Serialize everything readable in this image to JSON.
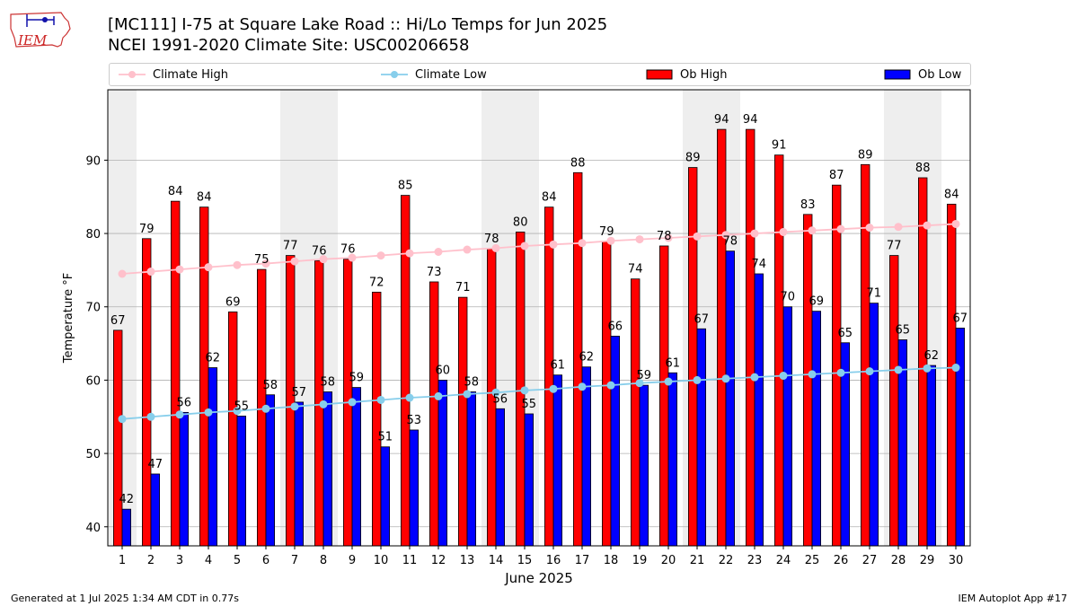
{
  "title_line1": "[MC111] I-75 at Square Lake Road  :: Hi/Lo Temps for Jun 2025",
  "title_line2": "NCEI 1991-2020 Climate Site: USC00206658",
  "logo_text": "IEM",
  "footer_left": "Generated at 1 Jul 2025 1:34 AM CDT in 0.77s",
  "footer_right": "IEM Autoplot App #17",
  "colors": {
    "ob_high": "#ff0000",
    "ob_low": "#0000ff",
    "climate_high": "#ffc0cb",
    "climate_low": "#87ceeb",
    "weekend_shade": "#eeeeee",
    "grid": "#b0b0b0"
  },
  "chart_data": {
    "type": "bar",
    "xlabel": "June 2025",
    "ylabel": "Temperature °F",
    "ylim": [
      37.4,
      99.6
    ],
    "yticks": [
      40,
      50,
      60,
      70,
      80,
      90
    ],
    "grid": "horizontal",
    "legend_position": "top",
    "legend": [
      "Climate High",
      "Climate Low",
      "Ob High",
      "Ob Low"
    ],
    "categories": [
      "1",
      "2",
      "3",
      "4",
      "5",
      "6",
      "7",
      "8",
      "9",
      "10",
      "11",
      "12",
      "13",
      "14",
      "15",
      "16",
      "17",
      "18",
      "19",
      "20",
      "21",
      "22",
      "23",
      "24",
      "25",
      "26",
      "27",
      "28",
      "29",
      "30"
    ],
    "shaded_days": [
      1,
      7,
      8,
      14,
      15,
      21,
      22,
      28,
      29
    ],
    "series": [
      {
        "name": "Ob High",
        "kind": "bar",
        "values": [
          67,
          79,
          84,
          84,
          69,
          75,
          77,
          76,
          76,
          72,
          85,
          73,
          71,
          78,
          80,
          84,
          88,
          79,
          74,
          78,
          89,
          94,
          94,
          91,
          83,
          87,
          89,
          77,
          88,
          84
        ],
        "plotted": [
          66.8,
          79.3,
          84.4,
          83.6,
          69.3,
          75.1,
          77.0,
          76.3,
          76.5,
          72.0,
          85.2,
          73.4,
          71.3,
          77.9,
          80.2,
          83.6,
          88.3,
          78.9,
          73.8,
          78.3,
          89.0,
          94.2,
          94.2,
          90.7,
          82.6,
          86.6,
          89.4,
          77.0,
          87.6,
          84.0
        ]
      },
      {
        "name": "Ob Low",
        "kind": "bar",
        "values": [
          42,
          47,
          56,
          62,
          55,
          58,
          57,
          58,
          59,
          51,
          53,
          60,
          58,
          56,
          55,
          61,
          62,
          66,
          59,
          61,
          67,
          78,
          74,
          70,
          69,
          65,
          71,
          65,
          62,
          67
        ],
        "plotted": [
          42.4,
          47.2,
          55.6,
          61.7,
          55.1,
          58.0,
          57.0,
          58.4,
          59.0,
          50.9,
          53.2,
          60.0,
          58.4,
          56.1,
          55.4,
          60.7,
          61.8,
          66.0,
          59.3,
          61.0,
          67.0,
          77.6,
          74.5,
          70.0,
          69.4,
          65.1,
          70.5,
          65.5,
          62.0,
          67.1
        ]
      },
      {
        "name": "Climate High",
        "kind": "line",
        "values": [
          74.5,
          74.8,
          75.1,
          75.4,
          75.7,
          75.9,
          76.2,
          76.5,
          76.7,
          77.0,
          77.3,
          77.5,
          77.8,
          78.0,
          78.3,
          78.5,
          78.7,
          79.0,
          79.2,
          79.4,
          79.6,
          79.8,
          80.0,
          80.2,
          80.4,
          80.6,
          80.8,
          80.9,
          81.1,
          81.3
        ]
      },
      {
        "name": "Climate Low",
        "kind": "line",
        "values": [
          54.7,
          55.0,
          55.3,
          55.6,
          55.8,
          56.1,
          56.4,
          56.7,
          57.0,
          57.3,
          57.6,
          57.8,
          58.1,
          58.3,
          58.6,
          58.8,
          59.1,
          59.3,
          59.6,
          59.8,
          60.0,
          60.2,
          60.4,
          60.6,
          60.8,
          61.0,
          61.2,
          61.4,
          61.6,
          61.7
        ]
      }
    ]
  }
}
